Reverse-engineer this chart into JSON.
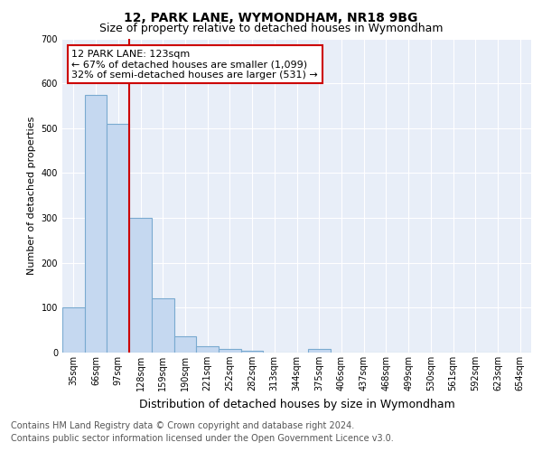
{
  "title1": "12, PARK LANE, WYMONDHAM, NR18 9BG",
  "title2": "Size of property relative to detached houses in Wymondham",
  "xlabel": "Distribution of detached houses by size in Wymondham",
  "ylabel": "Number of detached properties",
  "bar_labels": [
    "35sqm",
    "66sqm",
    "97sqm",
    "128sqm",
    "159sqm",
    "190sqm",
    "221sqm",
    "252sqm",
    "282sqm",
    "313sqm",
    "344sqm",
    "375sqm",
    "406sqm",
    "437sqm",
    "468sqm",
    "499sqm",
    "530sqm",
    "561sqm",
    "592sqm",
    "623sqm",
    "654sqm"
  ],
  "bar_values": [
    100,
    575,
    510,
    300,
    120,
    37,
    15,
    8,
    5,
    0,
    0,
    8,
    0,
    0,
    0,
    0,
    0,
    0,
    0,
    0,
    0
  ],
  "bar_color": "#c5d8f0",
  "bar_edgecolor": "#7aaad0",
  "property_line_index": 3,
  "property_line_color": "#cc0000",
  "ylim": [
    0,
    700
  ],
  "yticks": [
    0,
    100,
    200,
    300,
    400,
    500,
    600,
    700
  ],
  "annotation_text": "12 PARK LANE: 123sqm\n← 67% of detached houses are smaller (1,099)\n32% of semi-detached houses are larger (531) →",
  "annotation_box_facecolor": "#ffffff",
  "annotation_box_edgecolor": "#cc0000",
  "footer1": "Contains HM Land Registry data © Crown copyright and database right 2024.",
  "footer2": "Contains public sector information licensed under the Open Government Licence v3.0.",
  "axes_bg_color": "#e8eef8",
  "grid_color": "#ffffff",
  "title1_fontsize": 10,
  "title2_fontsize": 9,
  "xlabel_fontsize": 9,
  "ylabel_fontsize": 8,
  "tick_fontsize": 7,
  "annotation_fontsize": 8,
  "footer_fontsize": 7
}
